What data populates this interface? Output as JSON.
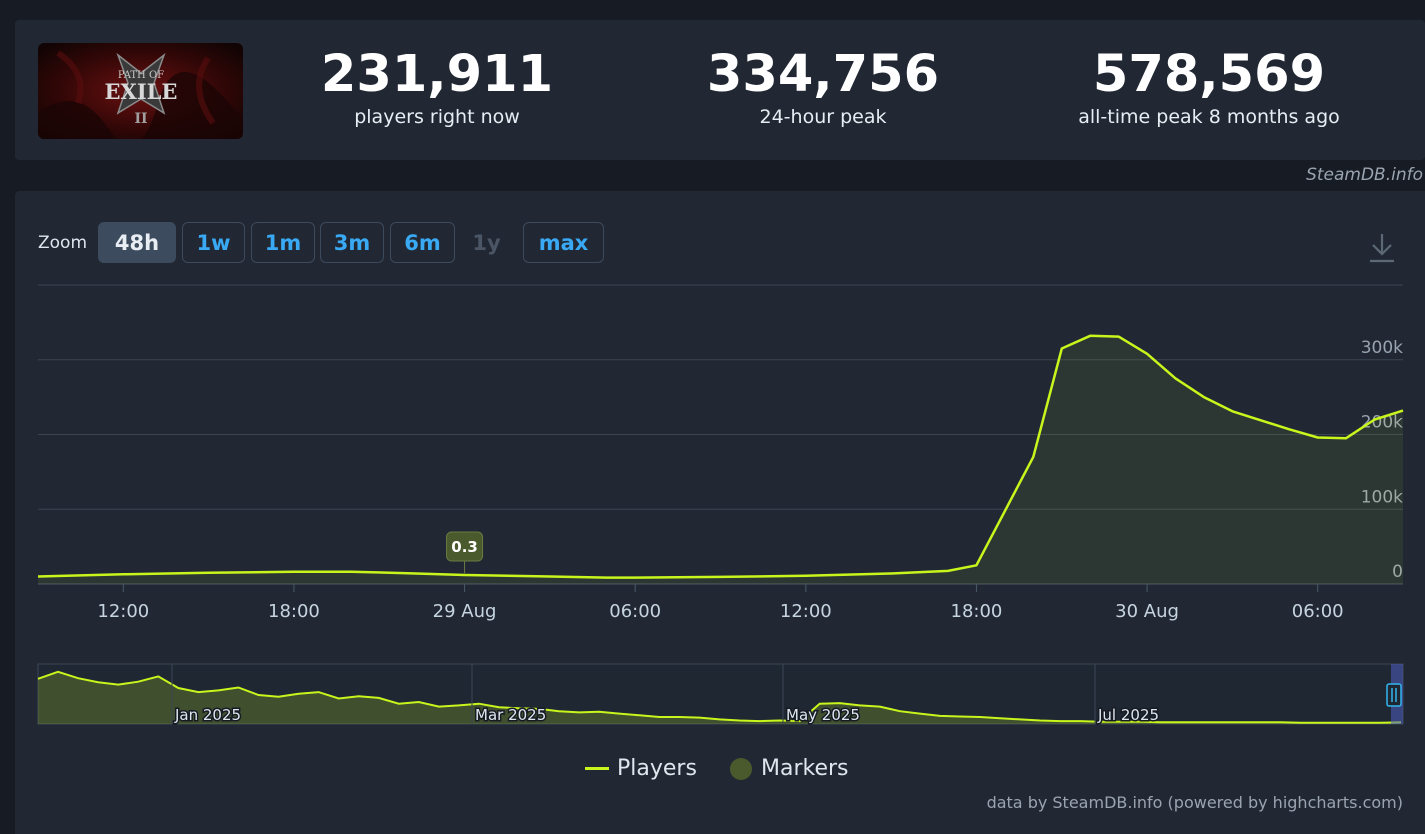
{
  "stats": [
    {
      "value": "231,911",
      "label": "players right now"
    },
    {
      "value": "334,756",
      "label": "24-hour peak"
    },
    {
      "value": "578,569",
      "label": "all-time peak 8 months ago"
    }
  ],
  "logo": {
    "line1": "PATH OF",
    "line2": "EXILE",
    "mark": "II"
  },
  "watermark": "SteamDB.info",
  "zoom": {
    "label": "Zoom",
    "buttons": [
      "48h",
      "1w",
      "1m",
      "3m",
      "6m",
      "1y",
      "max"
    ],
    "active": "48h",
    "disabled": [
      "1y"
    ]
  },
  "legend": {
    "players": "Players",
    "markers": "Markers"
  },
  "credits": "data by SteamDB.info (powered by highcharts.com)",
  "colors": {
    "players": "#c8f51c",
    "marker": "#4b5a2c",
    "background": "#212834"
  },
  "chart_data": {
    "type": "area",
    "series_name": "Players",
    "x_unit": "hours",
    "x_range": [
      -3,
      45
    ],
    "x_ticks": [
      {
        "x": 0,
        "label": "12:00"
      },
      {
        "x": 6,
        "label": "18:00"
      },
      {
        "x": 12,
        "label": "29 Aug"
      },
      {
        "x": 18,
        "label": "06:00"
      },
      {
        "x": 24,
        "label": "12:00"
      },
      {
        "x": 30,
        "label": "18:00"
      },
      {
        "x": 36,
        "label": "30 Aug"
      },
      {
        "x": 42,
        "label": "06:00"
      }
    ],
    "y_ticks": [
      {
        "y": 0,
        "label": "0"
      },
      {
        "y": 100000,
        "label": "100k"
      },
      {
        "y": 200000,
        "label": "200k"
      },
      {
        "y": 300000,
        "label": "300k"
      }
    ],
    "ylim": [
      0,
      400000
    ],
    "grid": true,
    "points": [
      [
        -3,
        10000
      ],
      [
        0,
        13000
      ],
      [
        3,
        15000
      ],
      [
        6,
        16500
      ],
      [
        8,
        16500
      ],
      [
        10,
        14500
      ],
      [
        12,
        12000
      ],
      [
        15,
        10000
      ],
      [
        17,
        8500
      ],
      [
        18,
        8500
      ],
      [
        21,
        9500
      ],
      [
        24,
        11000
      ],
      [
        27,
        14000
      ],
      [
        29,
        17500
      ],
      [
        30,
        25000
      ],
      [
        32,
        170000
      ],
      [
        33,
        315000
      ],
      [
        34,
        332000
      ],
      [
        35,
        331000
      ],
      [
        36,
        308000
      ],
      [
        37,
        275000
      ],
      [
        38,
        250000
      ],
      [
        39,
        231000
      ],
      [
        41,
        207000
      ],
      [
        42,
        196000
      ],
      [
        43,
        195000
      ],
      [
        44,
        220000
      ],
      [
        45,
        232000
      ]
    ],
    "markers": [
      {
        "x": 12,
        "y": 12000,
        "label": "0.3"
      }
    ],
    "navigator": {
      "labels": [
        "Jan 2025",
        "Mar 2025",
        "May 2025",
        "Jul 2025"
      ],
      "values": [
        0.78,
        0.9,
        0.79,
        0.72,
        0.68,
        0.73,
        0.82,
        0.62,
        0.55,
        0.58,
        0.63,
        0.5,
        0.47,
        0.52,
        0.55,
        0.44,
        0.48,
        0.45,
        0.35,
        0.38,
        0.3,
        0.32,
        0.35,
        0.29,
        0.27,
        0.26,
        0.22,
        0.2,
        0.21,
        0.18,
        0.15,
        0.12,
        0.12,
        0.11,
        0.08,
        0.06,
        0.05,
        0.06,
        0.05,
        0.35,
        0.36,
        0.32,
        0.3,
        0.22,
        0.18,
        0.14,
        0.13,
        0.12,
        0.1,
        0.08,
        0.06,
        0.05,
        0.05,
        0.04,
        0.04,
        0.04,
        0.03,
        0.03,
        0.03,
        0.03,
        0.03,
        0.03,
        0.03,
        0.02,
        0.02,
        0.02,
        0.02,
        0.02,
        0.03
      ]
    }
  }
}
